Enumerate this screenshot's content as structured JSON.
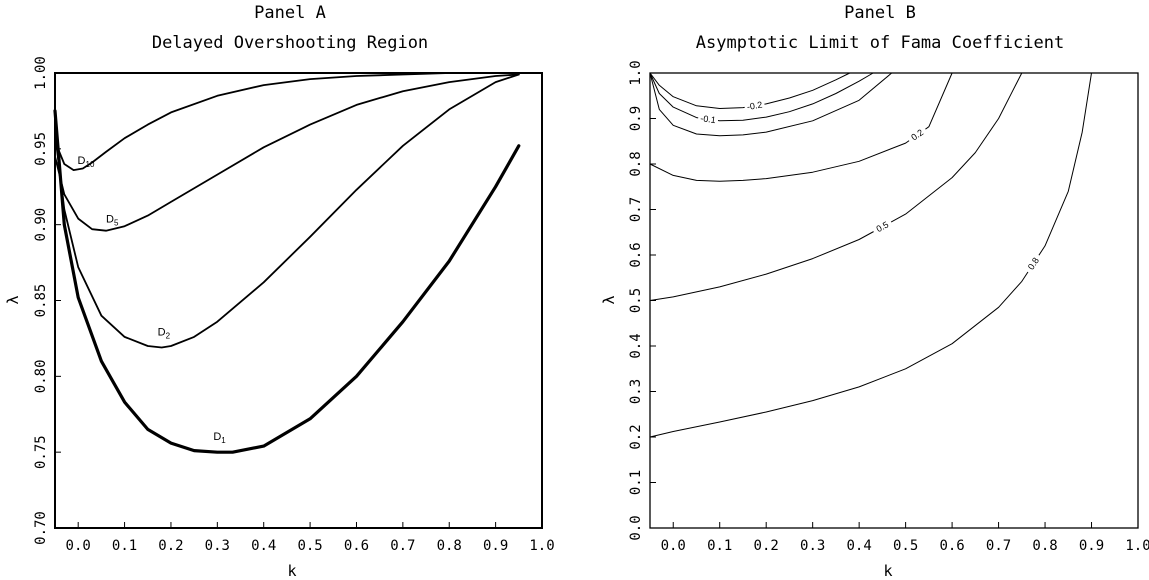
{
  "chart_data": [
    {
      "type": "line",
      "title": "Panel A",
      "subtitle": "Delayed Overshooting Region",
      "xlabel": "k",
      "ylabel": "λ",
      "xlim": [
        -0.05,
        1.0
      ],
      "ylim": [
        0.7,
        1.0
      ],
      "xticks": [
        "0.0",
        "0.1",
        "0.2",
        "0.3",
        "0.4",
        "0.5",
        "0.6",
        "0.7",
        "0.8",
        "0.9",
        "1.0"
      ],
      "yticks": [
        "0.70",
        "0.75",
        "0.80",
        "0.85",
        "0.90",
        "0.95",
        "1.00"
      ],
      "grid": false,
      "series": [
        {
          "name": "D1",
          "label_base": "D",
          "label_sub": "1",
          "x": [
            -0.05,
            -0.03,
            0.0,
            0.05,
            0.1,
            0.15,
            0.2,
            0.25,
            0.3,
            0.333,
            0.4,
            0.5,
            0.6,
            0.7,
            0.8,
            0.9,
            0.95
          ],
          "y": [
            0.975,
            0.9,
            0.852,
            0.81,
            0.783,
            0.765,
            0.756,
            0.751,
            0.75,
            0.75,
            0.754,
            0.772,
            0.8,
            0.836,
            0.876,
            0.925,
            0.952
          ]
        },
        {
          "name": "D2",
          "label_base": "D",
          "label_sub": "2",
          "x": [
            -0.05,
            -0.03,
            0.0,
            0.05,
            0.1,
            0.15,
            0.18,
            0.2,
            0.25,
            0.3,
            0.4,
            0.5,
            0.6,
            0.7,
            0.8,
            0.9,
            0.95
          ],
          "y": [
            0.96,
            0.91,
            0.872,
            0.84,
            0.826,
            0.82,
            0.819,
            0.82,
            0.826,
            0.836,
            0.862,
            0.892,
            0.923,
            0.952,
            0.976,
            0.994,
            0.999
          ]
        },
        {
          "name": "D5",
          "label_base": "D",
          "label_sub": "5",
          "x": [
            -0.05,
            -0.03,
            0.0,
            0.03,
            0.06,
            0.1,
            0.15,
            0.2,
            0.3,
            0.4,
            0.5,
            0.6,
            0.7,
            0.8,
            0.9,
            0.95
          ],
          "y": [
            0.945,
            0.92,
            0.904,
            0.897,
            0.896,
            0.899,
            0.906,
            0.915,
            0.933,
            0.951,
            0.966,
            0.979,
            0.988,
            0.994,
            0.998,
            0.999
          ]
        },
        {
          "name": "D10",
          "label_base": "D",
          "label_sub": "10",
          "x": [
            -0.05,
            -0.03,
            -0.01,
            0.01,
            0.03,
            0.06,
            0.1,
            0.15,
            0.2,
            0.3,
            0.4,
            0.5,
            0.6,
            0.7,
            0.8,
            0.9,
            0.95
          ],
          "y": [
            0.955,
            0.94,
            0.936,
            0.937,
            0.941,
            0.948,
            0.957,
            0.966,
            0.974,
            0.985,
            0.992,
            0.996,
            0.998,
            0.999,
            1.0,
            1.0,
            1.0
          ]
        }
      ]
    },
    {
      "type": "line",
      "title": "Panel B",
      "subtitle": "Asymptotic Limit of Fama Coefficient",
      "xlabel": "k",
      "ylabel": "λ",
      "xlim": [
        -0.05,
        1.0
      ],
      "ylim": [
        0.0,
        1.0
      ],
      "xticks": [
        "0.0",
        "0.1",
        "0.2",
        "0.3",
        "0.4",
        "0.5",
        "0.6",
        "0.7",
        "0.8",
        "0.9",
        "1.0"
      ],
      "yticks": [
        "0.0",
        "0.1",
        "0.2",
        "0.3",
        "0.4",
        "0.5",
        "0.6",
        "0.7",
        "0.8",
        "0.9",
        "1.0"
      ],
      "grid": false,
      "series": [
        {
          "label": "-0.2",
          "x": [
            -0.05,
            -0.03,
            0.0,
            0.05,
            0.1,
            0.15,
            0.2,
            0.25,
            0.3,
            0.35,
            0.38
          ],
          "y": [
            1.0,
            0.973,
            0.948,
            0.928,
            0.922,
            0.924,
            0.932,
            0.945,
            0.962,
            0.985,
            1.0
          ]
        },
        {
          "label": "-0.1",
          "x": [
            -0.05,
            -0.03,
            0.0,
            0.05,
            0.1,
            0.15,
            0.2,
            0.25,
            0.3,
            0.35,
            0.4,
            0.43
          ],
          "y": [
            1.0,
            0.955,
            0.925,
            0.902,
            0.895,
            0.896,
            0.903,
            0.915,
            0.932,
            0.955,
            0.982,
            1.0
          ]
        },
        {
          "label": "",
          "x": [
            -0.05,
            -0.03,
            0.0,
            0.05,
            0.1,
            0.15,
            0.2,
            0.3,
            0.4,
            0.47
          ],
          "y": [
            1.0,
            0.92,
            0.885,
            0.866,
            0.862,
            0.864,
            0.87,
            0.895,
            0.94,
            1.0
          ]
        },
        {
          "label": "0.2",
          "x": [
            -0.05,
            0.0,
            0.05,
            0.1,
            0.15,
            0.2,
            0.3,
            0.4,
            0.5,
            0.55,
            0.6
          ],
          "y": [
            0.8,
            0.775,
            0.764,
            0.762,
            0.764,
            0.768,
            0.782,
            0.806,
            0.846,
            0.882,
            1.0
          ]
        },
        {
          "label": "0.5",
          "x": [
            -0.05,
            0.0,
            0.1,
            0.2,
            0.3,
            0.4,
            0.5,
            0.6,
            0.65,
            0.7,
            0.73,
            0.75
          ],
          "y": [
            0.5,
            0.508,
            0.53,
            0.558,
            0.592,
            0.634,
            0.69,
            0.77,
            0.825,
            0.9,
            0.96,
            1.0
          ]
        },
        {
          "label": "0.8",
          "x": [
            -0.05,
            0.0,
            0.1,
            0.2,
            0.3,
            0.4,
            0.5,
            0.6,
            0.7,
            0.75,
            0.8,
            0.85,
            0.88,
            0.9
          ],
          "y": [
            0.2,
            0.212,
            0.233,
            0.255,
            0.28,
            0.31,
            0.35,
            0.405,
            0.485,
            0.542,
            0.62,
            0.74,
            0.87,
            1.0
          ]
        }
      ]
    }
  ]
}
